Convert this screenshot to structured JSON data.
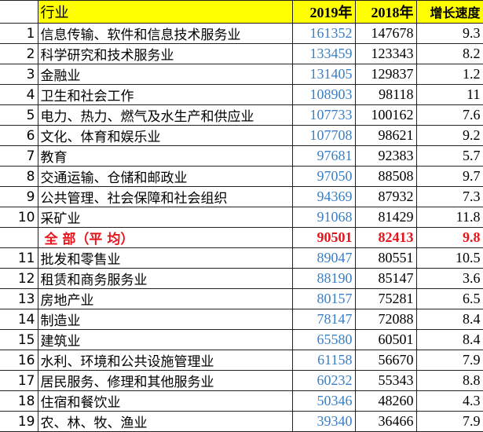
{
  "table": {
    "header": {
      "industry": "行业",
      "y2019": "2019年",
      "y2018": "2018年",
      "growth": "增长速度"
    },
    "rows": [
      {
        "rank": 1,
        "industry": "信息传输、软件和信息技术服务业",
        "y2019": 161352,
        "y2018": 147678,
        "growth": 9.3
      },
      {
        "rank": 2,
        "industry": "科学研究和技术服务业",
        "y2019": 133459,
        "y2018": 123343,
        "growth": 8.2
      },
      {
        "rank": 3,
        "industry": "金融业",
        "y2019": 131405,
        "y2018": 129837,
        "growth": 1.2
      },
      {
        "rank": 4,
        "industry": "卫生和社会工作",
        "y2019": 108903,
        "y2018": 98118,
        "growth": 11
      },
      {
        "rank": 5,
        "industry": "电力、热力、燃气及水生产和供应业",
        "y2019": 107733,
        "y2018": 100162,
        "growth": 7.6
      },
      {
        "rank": 6,
        "industry": "文化、体育和娱乐业",
        "y2019": 107708,
        "y2018": 98621,
        "growth": 9.2
      },
      {
        "rank": 7,
        "industry": "教育",
        "y2019": 97681,
        "y2018": 92383,
        "growth": 5.7
      },
      {
        "rank": 8,
        "industry": "交通运输、仓储和邮政业",
        "y2019": 97050,
        "y2018": 88508,
        "growth": 9.7
      },
      {
        "rank": 9,
        "industry": "公共管理、社会保障和社会组织",
        "y2019": 94369,
        "y2018": 87932,
        "growth": 7.3
      },
      {
        "rank": 10,
        "industry": "采矿业",
        "y2019": 91068,
        "y2018": 81429,
        "growth": 11.8
      },
      {
        "industry": "全 部（平 均）",
        "y2019": 90501,
        "y2018": 82413,
        "growth": 9.8,
        "highlight": true
      },
      {
        "rank": 11,
        "industry": "批发和零售业",
        "y2019": 89047,
        "y2018": 80551,
        "growth": 10.5
      },
      {
        "rank": 12,
        "industry": "租赁和商务服务业",
        "y2019": 88190,
        "y2018": 85147,
        "growth": 3.6
      },
      {
        "rank": 13,
        "industry": "房地产业",
        "y2019": 80157,
        "y2018": 75281,
        "growth": 6.5
      },
      {
        "rank": 14,
        "industry": "制造业",
        "y2019": 78147,
        "y2018": 72088,
        "growth": 8.4
      },
      {
        "rank": 15,
        "industry": "建筑业",
        "y2019": 65580,
        "y2018": 60501,
        "growth": 8.4
      },
      {
        "rank": 16,
        "industry": "水利、环境和公共设施管理业",
        "y2019": 61158,
        "y2018": 56670,
        "growth": 7.9
      },
      {
        "rank": 17,
        "industry": "居民服务、修理和其他服务业",
        "y2019": 60232,
        "y2018": 55343,
        "growth": 8.8
      },
      {
        "rank": 18,
        "industry": "住宿和餐饮业",
        "y2019": 50346,
        "y2018": 48260,
        "growth": 4.3
      },
      {
        "rank": 19,
        "industry": "农、林、牧、渔业",
        "y2019": 39340,
        "y2018": 36466,
        "growth": 7.9
      }
    ]
  }
}
